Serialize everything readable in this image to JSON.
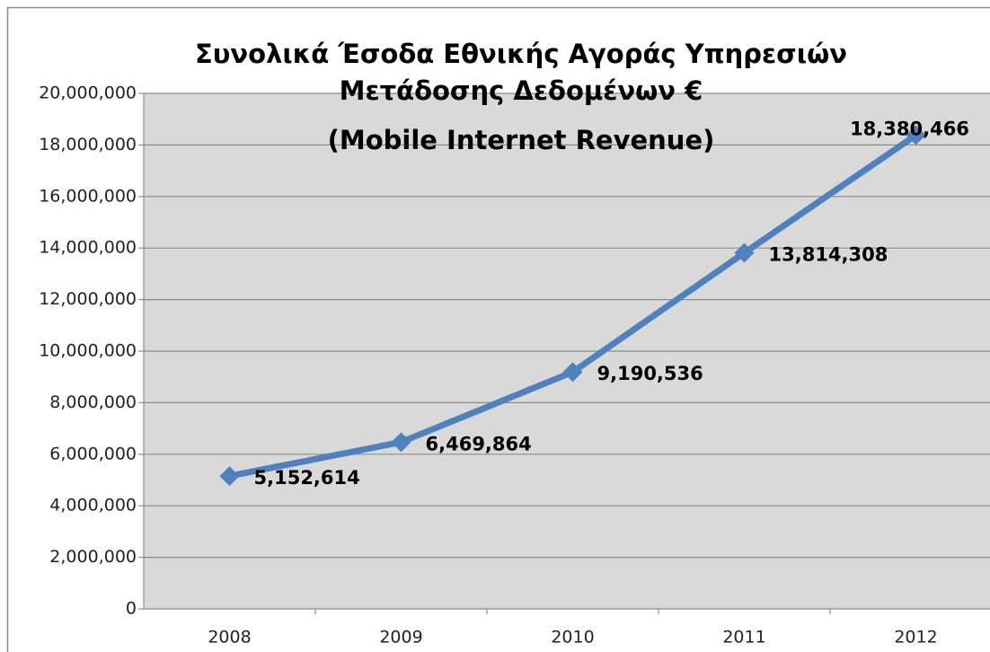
{
  "chart_data": {
    "type": "line",
    "title": [
      "Συνολικά Έσοδα Εθνικής Αγοράς Υπηρεσιών",
      "Μετάδοσης Δεδομένων €",
      "(Mobile Internet Revenue)"
    ],
    "categories": [
      "2008",
      "2009",
      "2010",
      "2011",
      "2012"
    ],
    "series": [
      {
        "name": "Mobile Internet Revenue",
        "color": "#4f81bd",
        "values": [
          5152614,
          6469864,
          9190536,
          13814308,
          18380466
        ],
        "value_labels": [
          "5,152,614",
          "6,469,864",
          "9,190,536",
          "13,814,308",
          "18,380,466"
        ]
      }
    ],
    "ylim": [
      0,
      20000000
    ],
    "yticks": [
      0,
      {
        "value": 2000000,
        "label": "2,000,000"
      },
      {
        "value": 4000000,
        "label": "4,000,000"
      },
      {
        "value": 6000000,
        "label": "6,000,000"
      },
      {
        "value": 8000000,
        "label": "8,000,000"
      },
      {
        "value": 10000000,
        "label": "10,000,000"
      },
      {
        "value": 12000000,
        "label": "12,000,000"
      },
      {
        "value": 14000000,
        "label": "14,000,000"
      },
      {
        "value": 16000000,
        "label": "16,000,000"
      },
      {
        "value": 18000000,
        "label": "18,000,000"
      },
      {
        "value": 20000000,
        "label": "20,000,000"
      }
    ],
    "grid": true
  }
}
